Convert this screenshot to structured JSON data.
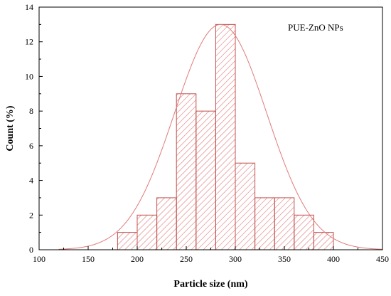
{
  "chart_data": {
    "type": "bar",
    "subtype": "histogram-with-normal-fit",
    "legend_label": "PUE-ZnO NPs",
    "legend_position": "top-right",
    "xlabel": "Particle size (nm)",
    "ylabel": "Count (%)",
    "xlim": [
      100,
      450
    ],
    "ylim": [
      0,
      14
    ],
    "x_ticks": [
      100,
      150,
      200,
      250,
      300,
      350,
      400,
      450
    ],
    "y_ticks": [
      0,
      2,
      4,
      6,
      8,
      10,
      12,
      14
    ],
    "grid": false,
    "bins": [
      {
        "start": 180,
        "end": 200,
        "value": 1
      },
      {
        "start": 200,
        "end": 220,
        "value": 2
      },
      {
        "start": 220,
        "end": 240,
        "value": 3
      },
      {
        "start": 240,
        "end": 260,
        "value": 9
      },
      {
        "start": 260,
        "end": 280,
        "value": 8
      },
      {
        "start": 280,
        "end": 300,
        "value": 13
      },
      {
        "start": 300,
        "end": 320,
        "value": 5
      },
      {
        "start": 320,
        "end": 340,
        "value": 3
      },
      {
        "start": 340,
        "end": 360,
        "value": 3
      },
      {
        "start": 360,
        "end": 380,
        "value": 2
      },
      {
        "start": 380,
        "end": 400,
        "value": 1
      }
    ],
    "fit_curve": {
      "type": "normal",
      "mean": 285,
      "sd": 47,
      "amplitude": 13,
      "x_range": [
        120,
        450
      ]
    },
    "colors": {
      "bar_stroke": "#c0504d",
      "hatch": "#e07878",
      "curve": "#e07a7a",
      "axis": "#000000"
    }
  }
}
